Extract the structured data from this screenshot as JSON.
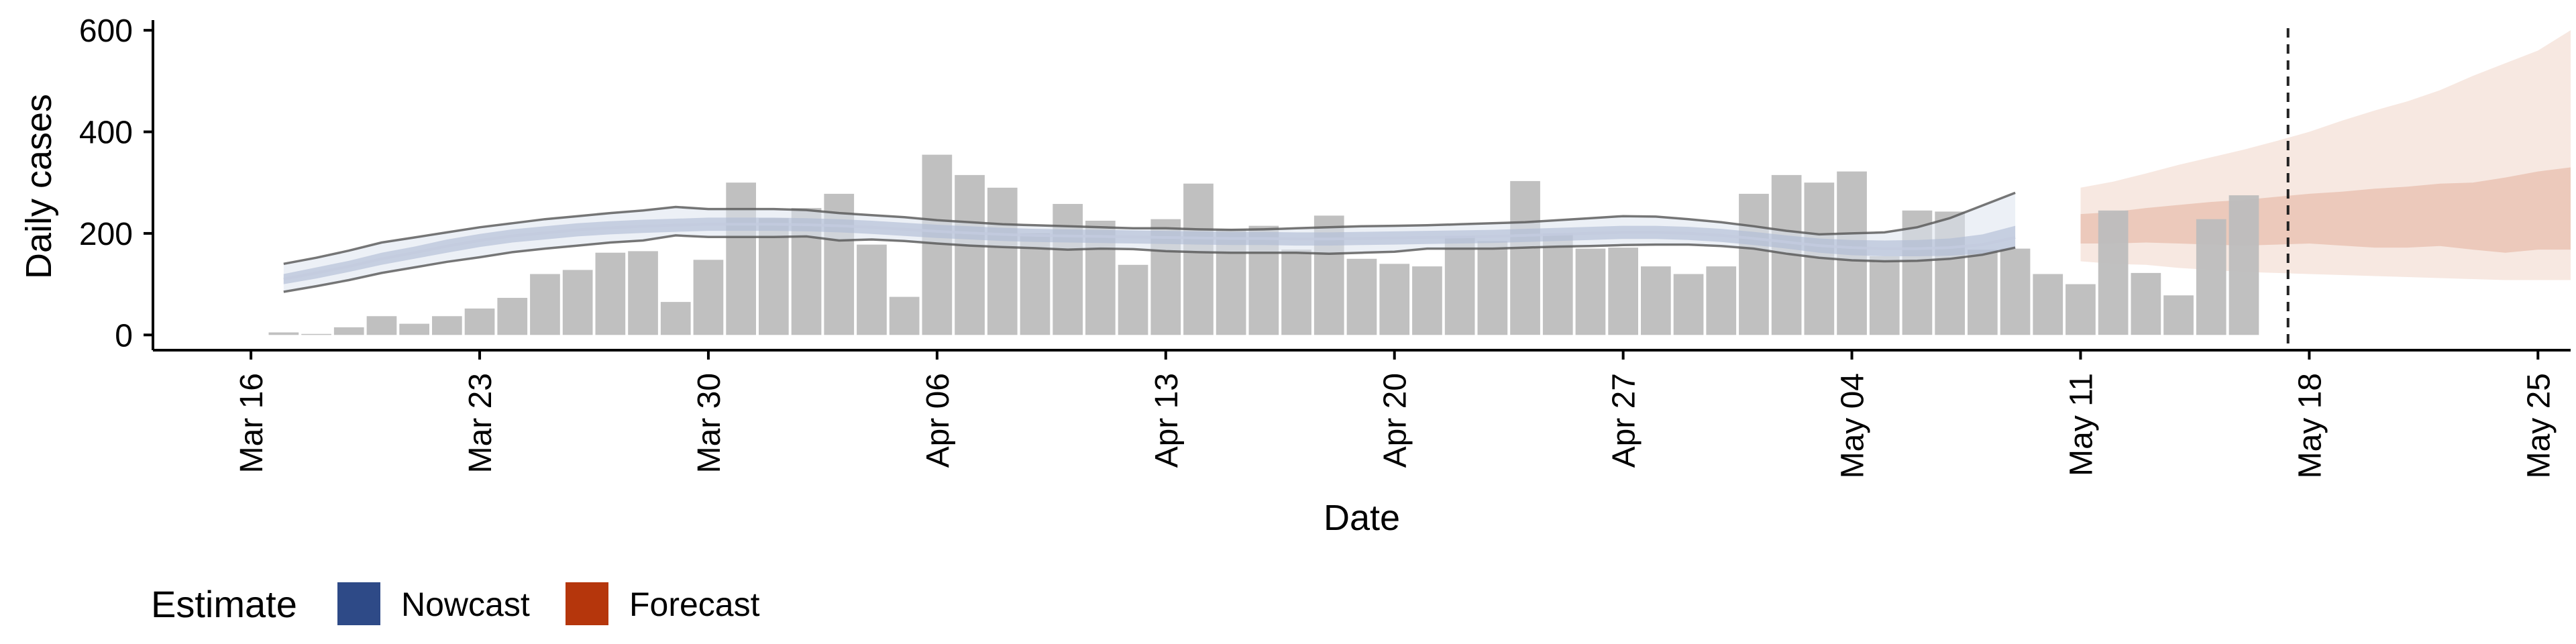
{
  "chart_data": {
    "type": "bar",
    "xlabel": "Date",
    "ylabel": "Daily cases",
    "x_type": "date",
    "xlim": [
      "2020-03-13",
      "2020-05-26"
    ],
    "ylim": [
      -30,
      620
    ],
    "x_ticks": [
      {
        "date": "2020-03-16",
        "label": "Mar 16"
      },
      {
        "date": "2020-03-23",
        "label": "Mar 23"
      },
      {
        "date": "2020-03-30",
        "label": "Mar 30"
      },
      {
        "date": "2020-04-06",
        "label": "Apr 06"
      },
      {
        "date": "2020-04-13",
        "label": "Apr 13"
      },
      {
        "date": "2020-04-20",
        "label": "Apr 20"
      },
      {
        "date": "2020-04-27",
        "label": "Apr 27"
      },
      {
        "date": "2020-05-04",
        "label": "May 04"
      },
      {
        "date": "2020-05-11",
        "label": "May 11"
      },
      {
        "date": "2020-05-18",
        "label": "May 18"
      },
      {
        "date": "2020-05-25",
        "label": "May 25"
      }
    ],
    "y_ticks": [
      0,
      200,
      400,
      600
    ],
    "bars": {
      "start_date": "2020-03-17",
      "color": "#bdbdbd",
      "values": [
        5,
        2,
        15,
        37,
        22,
        37,
        52,
        73,
        120,
        128,
        162,
        165,
        65,
        148,
        300,
        230,
        250,
        278,
        178,
        75,
        355,
        315,
        290,
        200,
        258,
        225,
        138,
        228,
        298,
        208,
        215,
        168,
        235,
        150,
        140,
        135,
        195,
        185,
        303,
        200,
        170,
        172,
        135,
        120,
        135,
        278,
        315,
        300,
        322,
        155,
        245,
        243,
        168,
        170,
        120,
        100,
        245,
        122,
        78,
        228,
        275
      ]
    },
    "reference_line": {
      "date": "2020-05-17",
      "style": "dashed",
      "color": "#222222"
    },
    "series": [
      {
        "name": "Nowcast",
        "color": "#2e4a87",
        "start_date": "2020-03-17",
        "median": [
          110,
          122,
          135,
          150,
          162,
          175,
          186,
          195,
          201,
          207,
          211,
          214,
          216,
          218,
          218,
          218,
          217,
          215,
          212,
          208,
          204,
          201,
          198,
          196,
          195,
          194,
          193,
          192,
          191,
          190,
          190,
          189,
          189,
          190,
          191,
          192,
          193,
          194,
          196,
          198,
          200,
          202,
          202,
          200,
          196,
          190,
          183,
          176,
          172,
          170,
          170,
          172,
          178,
          192
        ],
        "inner_low": [
          100,
          111,
          124,
          138,
          150,
          162,
          173,
          182,
          188,
          194,
          198,
          201,
          203,
          205,
          205,
          205,
          204,
          202,
          199,
          195,
          191,
          188,
          185,
          183,
          182,
          181,
          180,
          179,
          178,
          177,
          177,
          176,
          176,
          177,
          178,
          179,
          180,
          181,
          183,
          185,
          187,
          189,
          189,
          187,
          183,
          177,
          170,
          162,
          157,
          155,
          155,
          156,
          160,
          170
        ],
        "inner_high": [
          120,
          133,
          146,
          162,
          174,
          188,
          199,
          208,
          214,
          220,
          224,
          227,
          229,
          231,
          231,
          231,
          230,
          228,
          225,
          221,
          217,
          214,
          211,
          209,
          208,
          207,
          206,
          205,
          204,
          203,
          203,
          202,
          202,
          203,
          204,
          205,
          206,
          207,
          209,
          211,
          213,
          215,
          215,
          213,
          209,
          203,
          196,
          190,
          187,
          186,
          187,
          190,
          198,
          215
        ],
        "outer_low": [
          85,
          96,
          108,
          122,
          133,
          144,
          153,
          163,
          170,
          176,
          182,
          186,
          196,
          193,
          193,
          193,
          194,
          186,
          188,
          185,
          180,
          176,
          173,
          171,
          168,
          170,
          169,
          165,
          163,
          162,
          162,
          162,
          160,
          162,
          164,
          170,
          170,
          170,
          172,
          174,
          175,
          177,
          178,
          178,
          175,
          170,
          160,
          152,
          147,
          145,
          146,
          150,
          158,
          172
        ],
        "outer_high": [
          140,
          152,
          166,
          182,
          192,
          202,
          212,
          220,
          228,
          234,
          240,
          245,
          252,
          248,
          248,
          248,
          246,
          240,
          236,
          232,
          226,
          222,
          218,
          216,
          214,
          212,
          210,
          210,
          208,
          207,
          208,
          210,
          212,
          214,
          215,
          216,
          218,
          220,
          222,
          226,
          230,
          234,
          233,
          228,
          222,
          214,
          205,
          198,
          200,
          202,
          212,
          230,
          255,
          280
        ]
      },
      {
        "name": "Forecast",
        "color": "#b5360c",
        "start_date": "2020-05-11",
        "inner_low": [
          180,
          180,
          182,
          180,
          178,
          176,
          178,
          180,
          176,
          172,
          172,
          175,
          168,
          162,
          168,
          168
        ],
        "inner_high": [
          238,
          242,
          250,
          256,
          262,
          266,
          272,
          278,
          282,
          288,
          292,
          298,
          300,
          310,
          322,
          330
        ],
        "outer_low": [
          145,
          140,
          138,
          132,
          128,
          124,
          122,
          120,
          118,
          116,
          114,
          112,
          110,
          108,
          108,
          108
        ],
        "outer_high": [
          290,
          302,
          318,
          335,
          350,
          365,
          382,
          400,
          422,
          442,
          460,
          482,
          510,
          535,
          560,
          600
        ]
      }
    ],
    "legend": {
      "title": "Estimate",
      "position": "bottom-left",
      "items": [
        {
          "label": "Nowcast",
          "color": "#2e4a87"
        },
        {
          "label": "Forecast",
          "color": "#b5360c"
        }
      ]
    }
  }
}
